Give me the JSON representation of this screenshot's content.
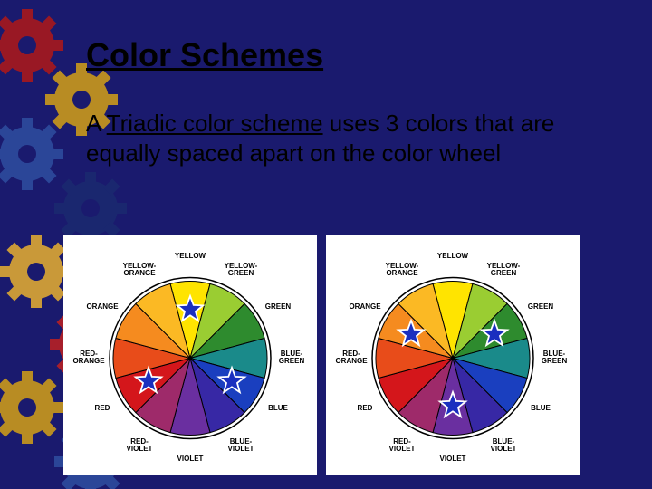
{
  "title": "Color Schemes",
  "body": {
    "prefix": "A ",
    "underlined": "Triadic color scheme",
    "suffix": " uses 3 colors that are equally spaced apart on the color wheel"
  },
  "background": {
    "base": "#1a1a6e",
    "gear_colors": [
      "#b01818",
      "#d4a017",
      "#2e4ea0",
      "#1a2a70",
      "#e8b030",
      "#c02020"
    ]
  },
  "wheel": {
    "segments": [
      {
        "label": "YELLOW",
        "color": "#ffe400"
      },
      {
        "label": "YELLOW-\nGREEN",
        "color": "#9acd32"
      },
      {
        "label": "GREEN",
        "color": "#2e8b2e"
      },
      {
        "label": "BLUE-\nGREEN",
        "color": "#1a8a8a"
      },
      {
        "label": "BLUE",
        "color": "#1a3fbf"
      },
      {
        "label": "BLUE-\nVIOLET",
        "color": "#3728a5"
      },
      {
        "label": "VIOLET",
        "color": "#6a2fa0"
      },
      {
        "label": "RED-\nVIOLET",
        "color": "#9e2a6a"
      },
      {
        "label": "RED",
        "color": "#d4161b"
      },
      {
        "label": "RED-\nORANGE",
        "color": "#e84c1a"
      },
      {
        "label": "ORANGE",
        "color": "#f58b1f"
      },
      {
        "label": "YELLOW-\nORANGE",
        "color": "#fbb924"
      }
    ],
    "outline": "#000000",
    "panel_bg": "#ffffff",
    "radius": 85,
    "label_radius": 112
  },
  "stars": {
    "fill": "#1a2fbf",
    "stroke": "#ffffff",
    "size": 18,
    "left_wheel": [
      0,
      4,
      8
    ],
    "right_wheel": [
      2,
      6,
      10
    ]
  }
}
